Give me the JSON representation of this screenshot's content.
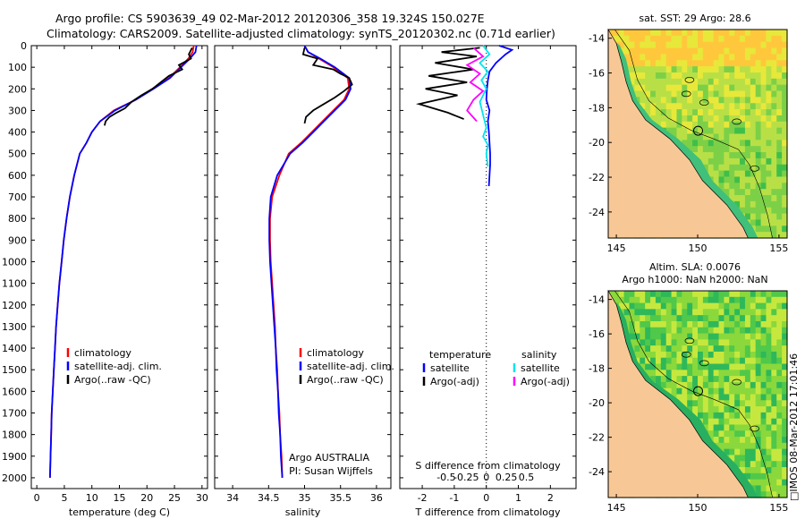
{
  "header": {
    "line1": "Argo profile: CS 5903639_49 02-Mar-2012 20120306_358 19.324S 150.027E",
    "line2": "Climatology: CARS2009. Satellite-adjusted climatology: synTS_20120302.nc (0.71d earlier)"
  },
  "colors": {
    "clim": "#ff0000",
    "sat": "#0000ff",
    "argo": "#000000",
    "sat_s": "#00e5ee",
    "argo_s": "#ff00ff",
    "land": "#f7c896"
  },
  "chart_data": [
    {
      "type": "line",
      "title": "",
      "xlabel": "temperature (deg C)",
      "ylabel": "",
      "xlim": [
        -1,
        31
      ],
      "ylim": [
        2050,
        0
      ],
      "xticks": [
        0,
        5,
        10,
        15,
        20,
        25,
        30
      ],
      "yticks": [
        0,
        100,
        200,
        300,
        400,
        500,
        600,
        700,
        800,
        900,
        1000,
        1100,
        1200,
        1300,
        1400,
        1500,
        1600,
        1700,
        1800,
        1900,
        2000
      ],
      "legend": [
        "climatology",
        "satellite-adj. clim.",
        "Argo(..raw -QC)"
      ],
      "series": [
        {
          "name": "climatology",
          "color": "#ff0000",
          "x": [
            28.5,
            28.3,
            27.5,
            26,
            24,
            21,
            18,
            14,
            11.5,
            10,
            9,
            7.8,
            6.8,
            6,
            5.4,
            4.9,
            4.5,
            4.1,
            3.8,
            3.5,
            3.3,
            3.1,
            2.9,
            2.7,
            2.6,
            2.5,
            2.4
          ],
          "y": [
            0,
            30,
            60,
            100,
            150,
            200,
            250,
            300,
            350,
            400,
            450,
            500,
            600,
            700,
            800,
            900,
            1000,
            1100,
            1200,
            1300,
            1400,
            1500,
            1600,
            1700,
            1800,
            1900,
            2000
          ]
        },
        {
          "name": "satellite-adj. clim.",
          "color": "#0000ff",
          "x": [
            29,
            28.8,
            27.8,
            26.2,
            24.2,
            21.2,
            18,
            14.2,
            11.5,
            10,
            9,
            7.8,
            6.8,
            6,
            5.4,
            4.9,
            4.5,
            4.1,
            3.8,
            3.5,
            3.3,
            3.1,
            2.9,
            2.7,
            2.6,
            2.5,
            2.4
          ],
          "y": [
            0,
            30,
            60,
            100,
            150,
            200,
            250,
            300,
            350,
            400,
            450,
            500,
            600,
            700,
            800,
            900,
            1000,
            1100,
            1200,
            1300,
            1400,
            1500,
            1600,
            1700,
            1800,
            1900,
            2000
          ]
        },
        {
          "name": "Argo(..raw -QC)",
          "color": "#000000",
          "x": [
            28.2,
            27.6,
            28,
            25.8,
            26.4,
            24,
            22.5,
            21,
            19,
            17.2,
            16,
            14.5,
            13.2,
            12.5,
            12.3
          ],
          "y": [
            10,
            40,
            60,
            90,
            110,
            140,
            170,
            200,
            230,
            260,
            290,
            310,
            330,
            350,
            370
          ]
        }
      ]
    },
    {
      "type": "line",
      "title": "",
      "xlabel": "salinity",
      "xlim": [
        33.75,
        36.2
      ],
      "ylim": [
        2050,
        0
      ],
      "xticks": [
        34,
        34.5,
        35,
        35.5,
        36
      ],
      "legend": [
        "climatology",
        "satellite-adj. clim.",
        "Argo(..raw -QC)"
      ],
      "annotation": [
        "Argo AUSTRALIA",
        "PI: Susan Wijffels"
      ],
      "series": [
        {
          "name": "climatology",
          "color": "#ff0000",
          "x": [
            35.0,
            35.05,
            35.2,
            35.4,
            35.6,
            35.62,
            35.55,
            35.4,
            35.25,
            35.1,
            34.95,
            34.78,
            34.65,
            34.55,
            34.52,
            34.52,
            34.53,
            34.55,
            34.57,
            34.59,
            34.6,
            34.62,
            34.63,
            34.65,
            34.66,
            34.68,
            34.69
          ],
          "y": [
            0,
            30,
            60,
            100,
            150,
            200,
            250,
            300,
            350,
            400,
            450,
            500,
            600,
            700,
            800,
            900,
            1000,
            1100,
            1200,
            1300,
            1400,
            1500,
            1600,
            1700,
            1800,
            1900,
            2000
          ]
        },
        {
          "name": "satellite-adj. clim.",
          "color": "#0000ff",
          "x": [
            35.0,
            35.05,
            35.22,
            35.42,
            35.62,
            35.64,
            35.57,
            35.42,
            35.27,
            35.12,
            34.97,
            34.8,
            34.62,
            34.53,
            34.51,
            34.51,
            34.52,
            34.54,
            34.56,
            34.58,
            34.6,
            34.61,
            34.63,
            34.64,
            34.66,
            34.67,
            34.69
          ],
          "y": [
            0,
            30,
            60,
            100,
            150,
            200,
            250,
            300,
            350,
            400,
            450,
            500,
            600,
            700,
            800,
            900,
            1000,
            1100,
            1200,
            1300,
            1400,
            1500,
            1600,
            1700,
            1800,
            1900,
            2000
          ]
        },
        {
          "name": "Argo(..raw -QC)",
          "color": "#000000",
          "x": [
            35.0,
            34.98,
            35.18,
            35.12,
            35.4,
            35.5,
            35.62,
            35.66,
            35.55,
            35.42,
            35.27,
            35.12,
            35.02,
            35.0
          ],
          "y": [
            10,
            40,
            60,
            90,
            110,
            130,
            150,
            180,
            210,
            240,
            270,
            300,
            330,
            360
          ]
        }
      ]
    },
    {
      "type": "line",
      "title": "",
      "xlabel": "T difference from climatology",
      "xlabel_top": "S difference from climatology",
      "xlim": [
        -2.7,
        2.8
      ],
      "ylim": [
        2050,
        0
      ],
      "xticks": [
        -2,
        -1,
        0,
        1,
        2
      ],
      "xticks_top": [
        "-0.5",
        "-0.25",
        "0",
        "0.25",
        "0.5"
      ],
      "legend_left": [
        "temperature",
        "satellite",
        "Argo(-adj)"
      ],
      "legend_right": [
        "salinity",
        "satellite",
        "Argo(-adj)"
      ],
      "series": [
        {
          "name": "T satellite",
          "color": "#0000ff",
          "x": [
            0.4,
            0.8,
            0.6,
            0.3,
            0.1,
            0.05,
            0.02,
            0,
            0.1,
            0.05,
            0.08,
            0.1,
            0.12,
            0.12,
            0.1,
            0.08
          ],
          "y": [
            0,
            20,
            40,
            80,
            120,
            160,
            200,
            250,
            300,
            350,
            400,
            450,
            500,
            550,
            600,
            650
          ]
        },
        {
          "name": "T Argo(-adj)",
          "color": "#000000",
          "x": [
            -0.2,
            -1.4,
            -0.3,
            -1.6,
            -0.4,
            -1.8,
            -0.6,
            -1.9,
            -0.9,
            -2.1,
            -1.2,
            -0.7
          ],
          "y": [
            10,
            30,
            50,
            80,
            110,
            140,
            170,
            200,
            230,
            270,
            310,
            340
          ]
        },
        {
          "name": "S satellite",
          "color": "#00e5ee",
          "x": [
            -0.1,
            0.1,
            -0.2,
            0.05,
            -0.15,
            0,
            -0.2,
            -0.1,
            0,
            -0.1,
            0.05,
            0,
            0.05
          ],
          "y": [
            0,
            40,
            80,
            120,
            160,
            200,
            260,
            320,
            380,
            420,
            460,
            500,
            560
          ]
        },
        {
          "name": "S Argo(-adj)",
          "color": "#ff00ff",
          "x": [
            -0.4,
            -0.1,
            -0.6,
            -0.2,
            -0.5,
            -0.1,
            -0.4,
            -0.6,
            -0.3
          ],
          "y": [
            10,
            50,
            90,
            130,
            170,
            210,
            250,
            300,
            350
          ]
        }
      ]
    },
    {
      "type": "heatmap",
      "title": "sat. SST: 29 Argo: 28.6",
      "xlim": [
        144.5,
        155.5
      ],
      "ylim": [
        -25.5,
        -13.5
      ],
      "xticks": [
        145,
        150,
        155
      ],
      "yticks": [
        -14,
        -16,
        -18,
        -20,
        -22,
        -24
      ]
    },
    {
      "type": "heatmap",
      "title": "Altim. SLA: 0.0076",
      "subtitle": "Argo h1000: NaN h2000: NaN",
      "xlim": [
        144.5,
        155.5
      ],
      "ylim": [
        -25.5,
        -13.5
      ],
      "xticks": [
        145,
        150,
        155
      ],
      "yticks": [
        -14,
        -16,
        -18,
        -20,
        -22,
        -24
      ]
    }
  ],
  "footer": {
    "stamp": "IMOS 08-Mar-2012 17:01:46"
  }
}
